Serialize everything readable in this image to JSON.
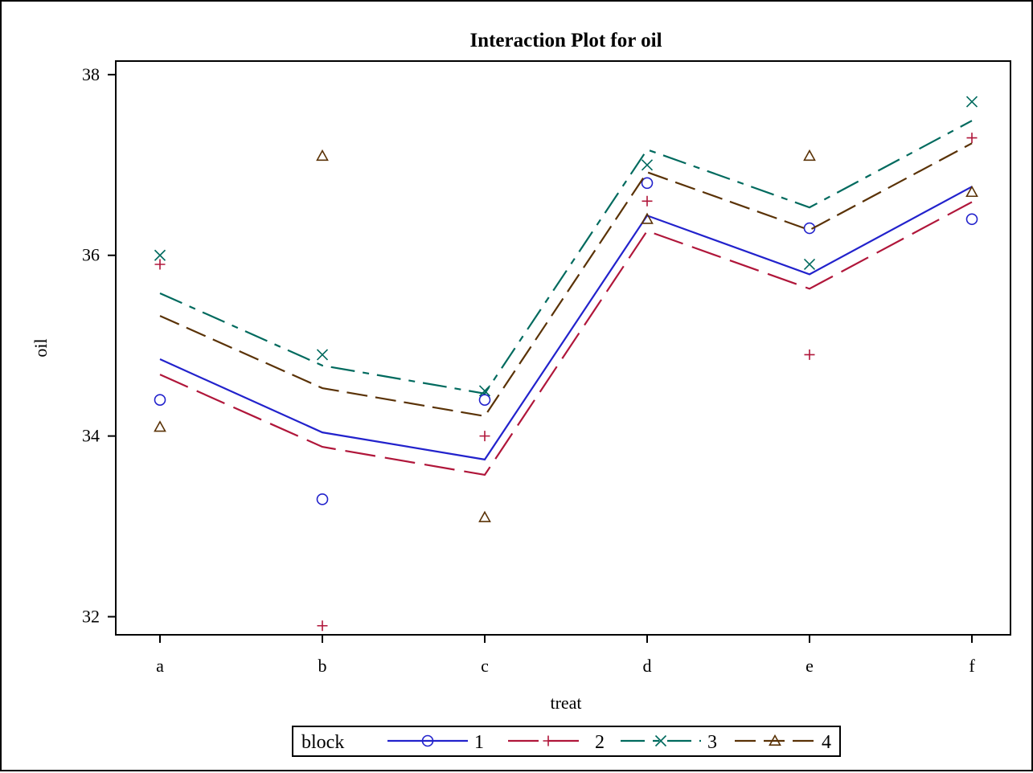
{
  "chart_data": {
    "type": "line",
    "title": "Interaction Plot for oil",
    "xlabel": "treat",
    "ylabel": "oil",
    "categories": [
      "a",
      "b",
      "c",
      "d",
      "e",
      "f"
    ],
    "ylim": [
      31.8,
      38.15
    ],
    "yticks": [
      32,
      34,
      36,
      38
    ],
    "grid": false,
    "legend": {
      "title": "block",
      "position": "bottom-center"
    },
    "series": [
      {
        "name": "1",
        "color": "#2222cc",
        "marker": "circle",
        "dash": "solid",
        "fitted": [
          34.85,
          34.04,
          33.74,
          36.44,
          35.79,
          36.76
        ],
        "observed": [
          34.4,
          33.3,
          34.4,
          36.8,
          36.3,
          36.4
        ]
      },
      {
        "name": "2",
        "color": "#b0163a",
        "marker": "plus",
        "dash": "long-dash",
        "fitted": [
          34.68,
          33.88,
          33.57,
          36.27,
          35.63,
          36.59
        ],
        "observed": [
          35.9,
          31.9,
          34.0,
          36.6,
          34.9,
          37.3
        ]
      },
      {
        "name": "3",
        "color": "#006a5e",
        "marker": "x",
        "dash": "dash-dot",
        "fitted": [
          35.58,
          34.78,
          34.47,
          37.17,
          36.53,
          37.49
        ],
        "observed": [
          36.0,
          34.9,
          34.5,
          37.0,
          35.9,
          37.7
        ]
      },
      {
        "name": "4",
        "color": "#5a3206",
        "marker": "triangle",
        "dash": "dash",
        "fitted": [
          35.33,
          34.53,
          34.22,
          36.92,
          36.28,
          37.24
        ],
        "observed": [
          34.1,
          37.1,
          33.1,
          36.4,
          37.1,
          36.7
        ]
      }
    ]
  }
}
